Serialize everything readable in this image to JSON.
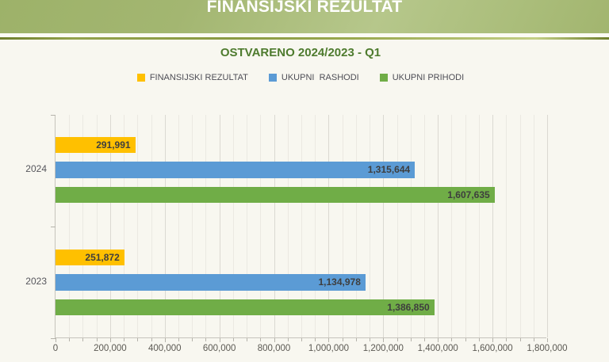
{
  "header": {
    "title": "FINANSIJSKI REZULTAT"
  },
  "colors": {
    "banner_green": "#a3b671",
    "separator_olive": "#8a9a43",
    "subtitle_green": "#4e7b2e",
    "series_orange": "#FFC000",
    "series_blue": "#5B9BD5",
    "series_green": "#70AD47",
    "axis_text": "#5b5953",
    "data_label_text": "#3e3e3e",
    "background": "#f8f7f0"
  },
  "chart_data": {
    "type": "bar",
    "orientation": "horizontal",
    "title": "OSTVARENO 2024/2023 - Q1",
    "categories": [
      "2024",
      "2023"
    ],
    "series": [
      {
        "name": "FINANSIJSKI REZULTAT",
        "color": "#FFC000",
        "values": [
          291991,
          251872
        ],
        "labels": [
          "291,991",
          "251,872"
        ]
      },
      {
        "name": "UKUPNI  RASHODI",
        "color": "#5B9BD5",
        "values": [
          1315644,
          1134978
        ],
        "labels": [
          "1,315,644",
          "1,134,978"
        ]
      },
      {
        "name": "UKUPNI PRIHODI",
        "color": "#70AD47",
        "values": [
          1607635,
          1386850
        ],
        "labels": [
          "1,607,635",
          "1,386,850"
        ]
      }
    ],
    "xlim": [
      0,
      1800000
    ],
    "x_major_step": 200000,
    "x_minor_step": 50000,
    "x_tick_labels": [
      "0",
      "200,000",
      "400,000",
      "600,000",
      "800,000",
      "1,000,000",
      "1,200,000",
      "1,400,000",
      "1,600,000",
      "1,800,000"
    ],
    "legend_position": "top",
    "data_label_position": "inside-end",
    "grid": "vertical minor + major"
  }
}
